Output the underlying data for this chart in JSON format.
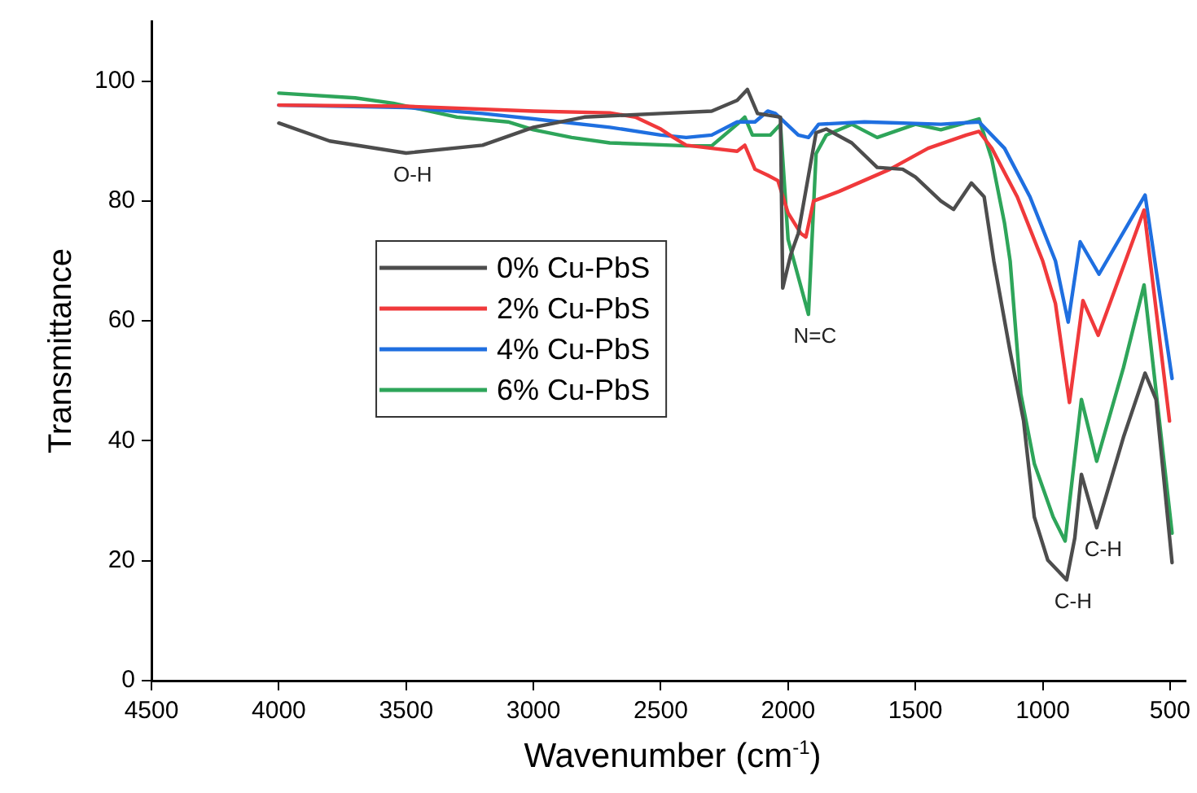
{
  "chart_data": {
    "type": "line",
    "xlabel": "Wavenumber (cm$^{-1}$)",
    "ylabel": "Transmittance",
    "xlim": [
      4500,
      440
    ],
    "xticks": [
      4500,
      4000,
      3500,
      3000,
      2500,
      2000,
      1500,
      1000,
      500
    ],
    "ylim": [
      0,
      110
    ],
    "yticks": [
      0,
      20,
      40,
      60,
      80,
      100
    ],
    "grid": false,
    "legend": "center left",
    "marker": "none",
    "line_style": "solid",
    "series": [
      {
        "name": "0% Cu-PbS",
        "color": "#4d4d4d",
        "x": [
          4000,
          3800,
          3500,
          3200,
          3000,
          2800,
          2500,
          2300,
          2200,
          2160,
          2120,
          2030,
          2021,
          1990,
          1960,
          1890,
          1850,
          1750,
          1650,
          1550,
          1500,
          1400,
          1350,
          1280,
          1230,
          1192,
          1128,
          1075,
          1033,
          980,
          906,
          874,
          848,
          788,
          683,
          598,
          555,
          492
        ],
        "values": [
          93,
          90,
          88,
          89.3,
          92.3,
          94,
          94.6,
          95,
          96.8,
          98.6,
          94.6,
          94,
          65.5,
          71,
          74.6,
          91.4,
          92,
          89.7,
          85.6,
          85.3,
          84,
          80,
          78.6,
          83,
          80.7,
          70,
          54.9,
          43.3,
          27.3,
          20.1,
          16.8,
          23.8,
          34.4,
          25.5,
          40.6,
          51.3,
          46.9,
          19.7
        ]
      },
      {
        "name": "2% Cu-PbS",
        "color": "#f0393b",
        "x": [
          4000,
          3500,
          3000,
          2700,
          2600,
          2500,
          2450,
          2400,
          2300,
          2200,
          2170,
          2130,
          2080,
          2040,
          2000,
          1950,
          1930,
          1900,
          1800,
          1600,
          1450,
          1300,
          1250,
          1200,
          1100,
          1000,
          950,
          895,
          842,
          782,
          602,
          502
        ],
        "values": [
          96,
          95.8,
          95,
          94.7,
          94,
          92,
          90.6,
          89.3,
          88.8,
          88.3,
          89.3,
          85.3,
          84.3,
          83.4,
          78,
          74.6,
          74,
          80,
          81.6,
          85.3,
          88.8,
          91,
          91.6,
          88.8,
          80.7,
          70,
          62.9,
          46.4,
          63.4,
          57.6,
          78.5,
          43.3
        ]
      },
      {
        "name": "4% Cu-PbS",
        "color": "#1f6fe0",
        "x": [
          4000,
          3500,
          3200,
          3000,
          2700,
          2500,
          2400,
          2300,
          2200,
          2130,
          2080,
          2050,
          1960,
          1920,
          1880,
          1700,
          1400,
          1250,
          1150,
          1050,
          950,
          900,
          853,
          779,
          598,
          492
        ],
        "values": [
          96,
          95.6,
          94.6,
          93.7,
          92.3,
          91,
          90.6,
          91,
          93.2,
          93.2,
          95,
          94.6,
          91,
          90.6,
          92.8,
          93.2,
          92.8,
          93.2,
          88.8,
          80.7,
          70,
          59.8,
          73.2,
          67.8,
          81,
          50.4
        ]
      },
      {
        "name": "6% Cu-PbS",
        "color": "#2ea55a",
        "x": [
          4000,
          3700,
          3550,
          3300,
          3100,
          3000,
          2850,
          2700,
          2400,
          2300,
          2200,
          2170,
          2140,
          2070,
          2030,
          2000,
          1920,
          1890,
          1850,
          1750,
          1650,
          1500,
          1400,
          1250,
          1200,
          1150,
          1128,
          1086,
          1033,
          959,
          912,
          848,
          788,
          683,
          602,
          492
        ],
        "values": [
          98,
          97.2,
          96.3,
          94,
          93.2,
          91.9,
          90.6,
          89.7,
          89.2,
          89.2,
          92.8,
          94,
          91,
          91,
          92.8,
          73.6,
          61.1,
          87.9,
          91,
          92.8,
          90.6,
          92.8,
          91.9,
          93.7,
          87,
          76.3,
          70,
          47.8,
          36.2,
          27.3,
          23.3,
          46.9,
          36.6,
          52.2,
          66,
          24.6
        ]
      }
    ],
    "annotations": [
      {
        "text": "O-H",
        "x": 3500,
        "y": 88
      },
      {
        "text": "N=C",
        "x": 1920,
        "y": 61.1
      },
      {
        "text": "C-H",
        "x": 788,
        "y": 25.5
      },
      {
        "text": "C-H",
        "x": 906,
        "y": 16.8
      }
    ]
  }
}
